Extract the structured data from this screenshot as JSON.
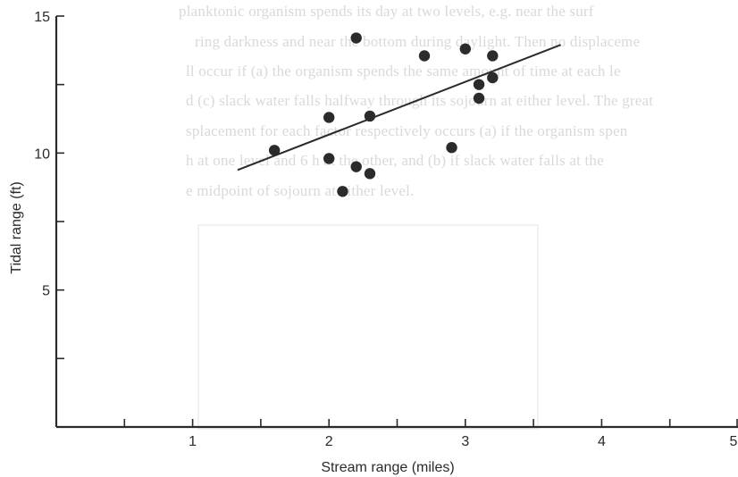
{
  "background_text": [
    "planktonic organism spends its day at two levels, e.g. near the surf",
    "ring darkness and near the bottom during daylight. Then no displaceme",
    "ll occur if (a) the organism spends the same amount of time at each le",
    "d (c) slack water falls halfway through its sojourn at either level. The great",
    "splacement for each factor respectively occurs (a) if the organism spen",
    "h at one level and 6 h at the other, and (b) if slack water falls at the",
    "e midpoint of sojourn at either level."
  ],
  "chart_data": {
    "type": "scatter",
    "title": "",
    "xlabel": "Stream range (miles)",
    "ylabel": "Tidal range (ft)",
    "xlim": [
      0,
      5
    ],
    "ylim": [
      0,
      15
    ],
    "x_ticks": [
      0.5,
      1,
      1.5,
      2,
      2.5,
      3,
      3.5,
      4,
      4.5,
      5
    ],
    "x_tick_labels": [
      "1",
      "2",
      "3",
      "4",
      "5"
    ],
    "x_labeled_ticks": [
      1,
      2,
      3,
      4,
      5
    ],
    "y_ticks": [
      2.5,
      5,
      7.5,
      10,
      12.5,
      15
    ],
    "y_tick_labels": [
      "5",
      "10",
      "15"
    ],
    "y_labeled_ticks": [
      5,
      10,
      15
    ],
    "grid": false,
    "series": [
      {
        "points": [
          {
            "x": 1.6,
            "y": 10.1
          },
          {
            "x": 2.0,
            "y": 11.3
          },
          {
            "x": 2.0,
            "y": 9.8
          },
          {
            "x": 2.1,
            "y": 8.6
          },
          {
            "x": 2.2,
            "y": 14.2
          },
          {
            "x": 2.2,
            "y": 9.5
          },
          {
            "x": 2.3,
            "y": 11.35
          },
          {
            "x": 2.3,
            "y": 9.25
          },
          {
            "x": 2.7,
            "y": 13.55
          },
          {
            "x": 2.9,
            "y": 10.2
          },
          {
            "x": 3.0,
            "y": 13.8
          },
          {
            "x": 3.1,
            "y": 12.5
          },
          {
            "x": 3.1,
            "y": 12.0
          },
          {
            "x": 3.2,
            "y": 13.55
          },
          {
            "x": 3.2,
            "y": 12.75
          }
        ]
      }
    ],
    "trendline": {
      "x1": 1.33,
      "y1": 9.38,
      "x2": 3.7,
      "y2": 13.95
    }
  }
}
